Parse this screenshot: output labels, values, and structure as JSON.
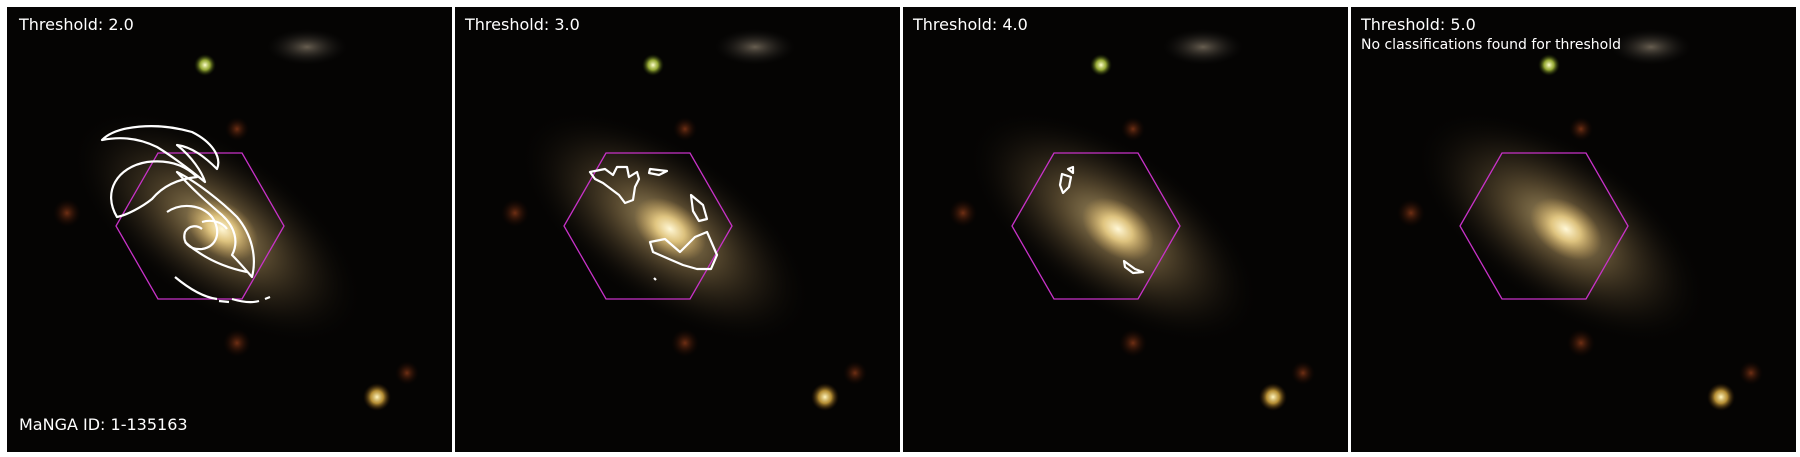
{
  "panels": [
    {
      "threshold_label": "Threshold: 2.0",
      "note": "",
      "footer": "MaNGA ID: 1-135163"
    },
    {
      "threshold_label": "Threshold: 3.0",
      "note": "",
      "footer": ""
    },
    {
      "threshold_label": "Threshold: 4.0",
      "note": "",
      "footer": ""
    },
    {
      "threshold_label": "Threshold: 5.0",
      "note": "No classifications found for threshold",
      "footer": ""
    }
  ],
  "colors": {
    "background": "#050403",
    "hexagon": "#c832c8",
    "contour": "#ffffff",
    "galaxy_core": "#fff0b4",
    "galaxy_halo": "#b49660"
  }
}
